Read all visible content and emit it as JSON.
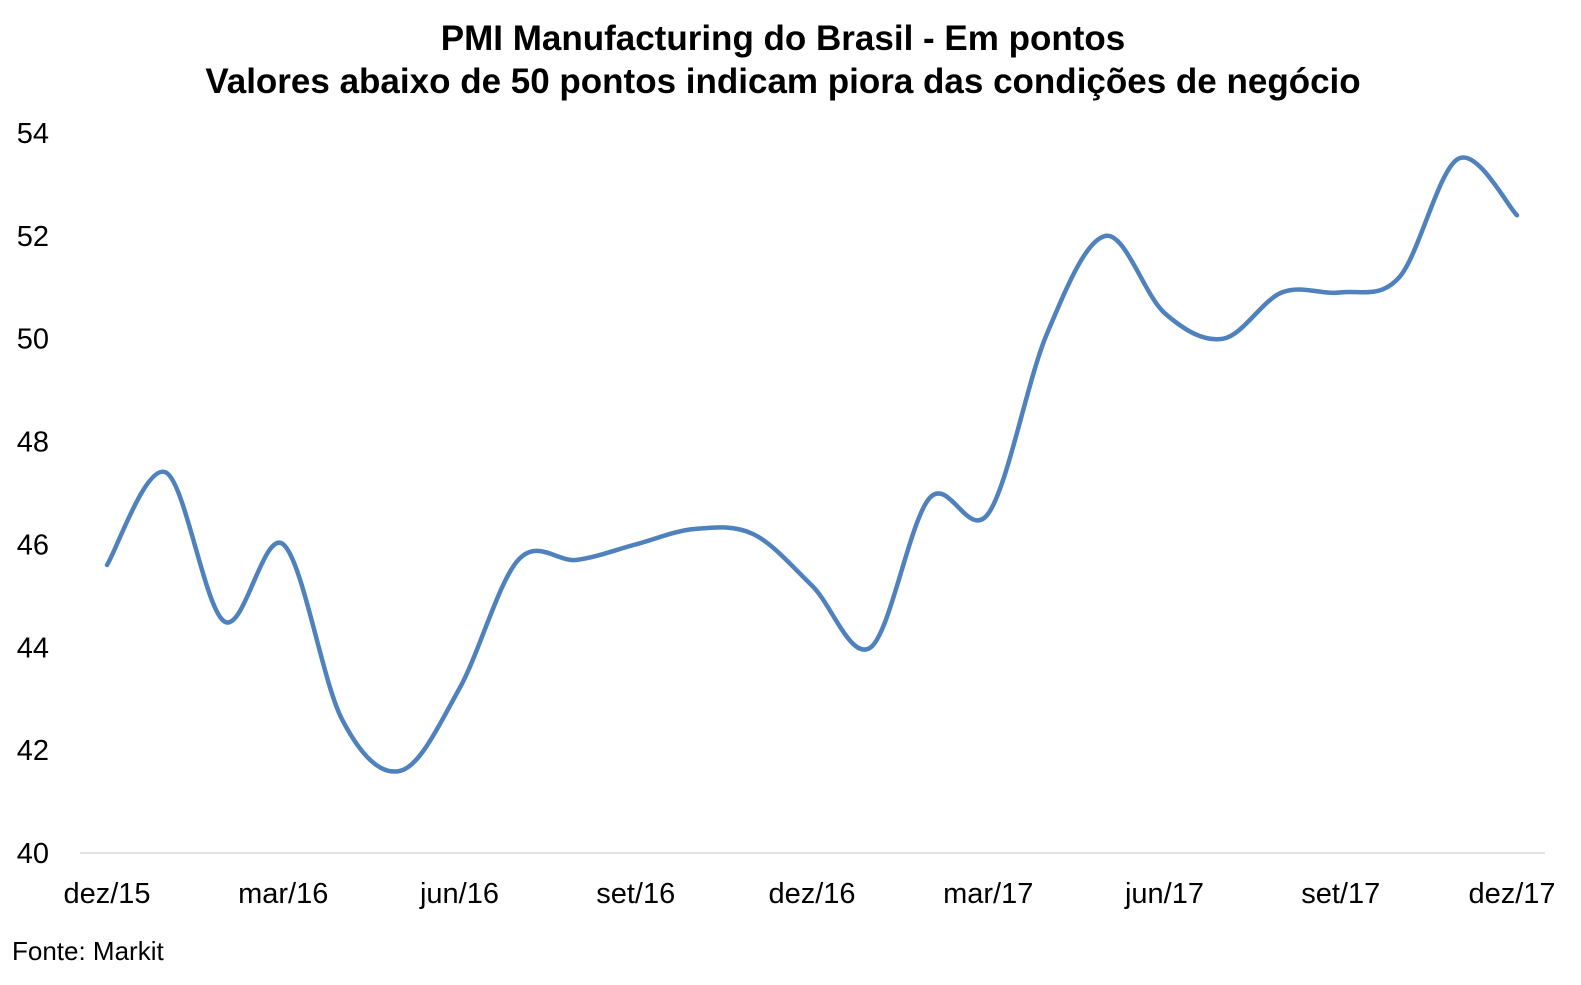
{
  "chart_data": {
    "type": "line",
    "title": "PMI Manufacturing do Brasil - Em pontos",
    "subtitle": "Valores abaixo de 50 pontos indicam piora das condições de negócio",
    "xlabel": "",
    "ylabel": "",
    "x_tick_labels": [
      "dez/15",
      "mar/16",
      "jun/16",
      "set/16",
      "dez/16",
      "mar/17",
      "jun/17",
      "set/17",
      "dez/17"
    ],
    "y_tick_labels": [
      "40",
      "42",
      "44",
      "46",
      "48",
      "50",
      "52",
      "54"
    ],
    "ylim": [
      40,
      54
    ],
    "grid": false,
    "x": [
      "dez/15",
      "jan/16",
      "fev/16",
      "mar/16",
      "abr/16",
      "mai/16",
      "jun/16",
      "jul/16",
      "ago/16",
      "set/16",
      "out/16",
      "nov/16",
      "dez/16",
      "jan/17",
      "fev/17",
      "mar/17",
      "abr/17",
      "mai/17",
      "jun/17",
      "jul/17",
      "ago/17",
      "set/17",
      "out/17",
      "nov/17",
      "dez/17"
    ],
    "series": [
      {
        "color": "#4F81BD",
        "values": [
          45.6,
          47.4,
          44.5,
          46.0,
          42.6,
          41.6,
          43.2,
          45.7,
          45.7,
          46.0,
          46.3,
          46.2,
          45.2,
          44.0,
          46.9,
          46.6,
          50.1,
          52.0,
          50.5,
          50.0,
          50.9,
          50.9,
          51.2,
          53.5,
          52.4
        ]
      }
    ]
  },
  "source": "Fonte: Markit"
}
